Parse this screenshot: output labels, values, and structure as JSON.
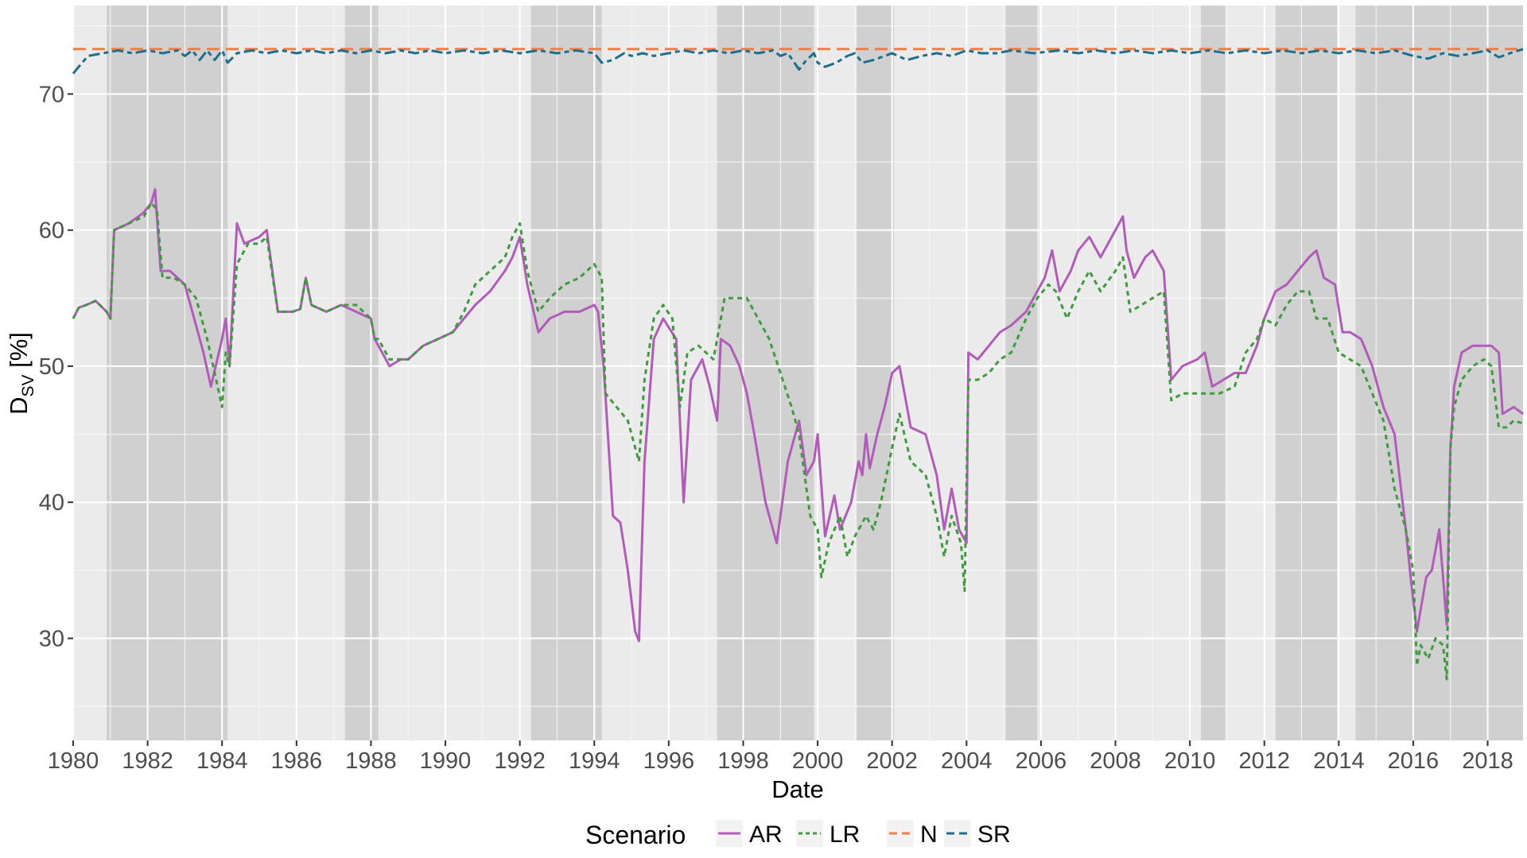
{
  "chart_data": {
    "type": "line",
    "xlabel": "Date",
    "ylabel_main": "D",
    "ylabel_sub": "SV",
    "ylabel_unit": " [%]",
    "xlim": [
      1980.0,
      2018.95
    ],
    "ylim": [
      22.5,
      76.5
    ],
    "x_ticks": [
      1980,
      1982,
      1984,
      1986,
      1988,
      1990,
      1992,
      1994,
      1996,
      1998,
      2000,
      2002,
      2004,
      2006,
      2008,
      2010,
      2012,
      2014,
      2016,
      2018
    ],
    "y_ticks": [
      30,
      40,
      50,
      60,
      70
    ],
    "grid": true,
    "legend": {
      "title": "Scenario",
      "position": "bottom"
    },
    "shaded_periods": [
      [
        1980.9,
        1984.15
      ],
      [
        1987.3,
        1988.2
      ],
      [
        1992.3,
        1994.2
      ],
      [
        1997.3,
        1999.9
      ],
      [
        2001.05,
        2002.05
      ],
      [
        2005.05,
        2005.9
      ],
      [
        2010.3,
        2010.95
      ],
      [
        2012.3,
        2013.95
      ],
      [
        2014.45,
        2017.05
      ],
      [
        2017.05,
        2018.95
      ]
    ],
    "series": [
      {
        "name": "AR",
        "color": "#B15CB8",
        "dash": "solid",
        "x": [
          1980.0,
          1980.15,
          1980.35,
          1980.6,
          1980.9,
          1981.0,
          1981.1,
          1981.5,
          1981.9,
          1982.1,
          1982.2,
          1982.35,
          1982.6,
          1983.0,
          1983.3,
          1983.5,
          1983.7,
          1984.0,
          1984.1,
          1984.2,
          1984.4,
          1984.6,
          1985.0,
          1985.2,
          1985.5,
          1985.9,
          1986.1,
          1986.25,
          1986.4,
          1986.8,
          1987.2,
          1987.6,
          1988.0,
          1988.1,
          1988.2,
          1988.5,
          1988.8,
          1989.0,
          1989.4,
          1989.8,
          1990.2,
          1990.5,
          1990.8,
          1991.2,
          1991.6,
          1991.8,
          1992.0,
          1992.2,
          1992.5,
          1992.8,
          1993.2,
          1993.6,
          1994.0,
          1994.1,
          1994.25,
          1994.5,
          1994.7,
          1994.9,
          1995.1,
          1995.2,
          1995.35,
          1995.6,
          1995.85,
          1996.2,
          1996.4,
          1996.6,
          1996.9,
          1997.1,
          1997.3,
          1997.4,
          1997.65,
          1997.9,
          1998.1,
          1998.3,
          1998.6,
          1998.9,
          1999.2,
          1999.5,
          1999.7,
          1999.9,
          2000.0,
          2000.2,
          2000.45,
          2000.6,
          2000.9,
          2001.1,
          2001.2,
          2001.3,
          2001.4,
          2001.6,
          2001.8,
          2002.0,
          2002.2,
          2002.5,
          2002.9,
          2003.2,
          2003.4,
          2003.6,
          2003.8,
          2004.0,
          2004.05,
          2004.3,
          2004.6,
          2004.9,
          2005.2,
          2005.6,
          2005.9,
          2006.1,
          2006.3,
          2006.5,
          2006.8,
          2007.0,
          2007.3,
          2007.6,
          2008.0,
          2008.2,
          2008.3,
          2008.5,
          2008.8,
          2009.0,
          2009.3,
          2009.5,
          2009.8,
          2010.2,
          2010.4,
          2010.6,
          2010.9,
          2011.2,
          2011.5,
          2011.8,
          2012.0,
          2012.3,
          2012.6,
          2012.9,
          2013.2,
          2013.4,
          2013.6,
          2013.9,
          2014.1,
          2014.3,
          2014.6,
          2014.9,
          2015.2,
          2015.5,
          2015.8,
          2015.95,
          2016.1,
          2016.35,
          2016.5,
          2016.7,
          2016.9,
          2017.0,
          2017.1,
          2017.3,
          2017.6,
          2017.9,
          2018.1,
          2018.3,
          2018.4,
          2018.7,
          2018.95
        ],
        "y": [
          53.5,
          54.3,
          54.5,
          54.8,
          54.0,
          53.5,
          60.0,
          60.5,
          61.3,
          62.0,
          63.0,
          57.0,
          57.0,
          56.0,
          53.0,
          51.0,
          48.5,
          52.0,
          53.5,
          50.0,
          60.5,
          59.0,
          59.5,
          60.0,
          54.0,
          54.0,
          54.2,
          56.5,
          54.5,
          54.0,
          54.5,
          54.0,
          53.5,
          52.0,
          51.5,
          50.0,
          50.5,
          50.5,
          51.5,
          52.0,
          52.5,
          53.5,
          54.5,
          55.5,
          57.0,
          58.0,
          59.5,
          56.0,
          52.5,
          53.5,
          54.0,
          54.0,
          54.5,
          54.0,
          50.0,
          39.0,
          38.5,
          35.0,
          30.5,
          29.8,
          43.0,
          52.0,
          53.5,
          52.0,
          40.0,
          49.0,
          50.5,
          48.5,
          46.0,
          52.0,
          51.5,
          50.0,
          48.0,
          45.0,
          40.0,
          37.0,
          43.0,
          46.0,
          42.0,
          43.0,
          45.0,
          37.5,
          40.5,
          38.0,
          40.0,
          43.0,
          42.0,
          45.0,
          42.5,
          45.0,
          47.0,
          49.5,
          50.0,
          45.5,
          45.0,
          42.0,
          38.0,
          41.0,
          38.0,
          37.0,
          51.0,
          50.5,
          51.5,
          52.5,
          53.0,
          54.0,
          55.5,
          56.5,
          58.5,
          55.5,
          57.0,
          58.5,
          59.5,
          58.0,
          60.0,
          61.0,
          58.5,
          56.5,
          58.0,
          58.5,
          57.0,
          49.0,
          50.0,
          50.5,
          51.0,
          48.5,
          49.0,
          49.5,
          49.5,
          51.5,
          53.5,
          55.5,
          56.0,
          57.0,
          58.0,
          58.5,
          56.5,
          56.0,
          52.5,
          52.5,
          52.0,
          50.0,
          47.0,
          45.0,
          38.0,
          34.0,
          30.5,
          34.5,
          35.0,
          38.0,
          31.0,
          44.0,
          48.5,
          51.0,
          51.5,
          51.5,
          51.5,
          51.0,
          46.5,
          47.0,
          46.5
        ],
        "legend_label": "AR"
      },
      {
        "name": "LR",
        "color": "#3E9B3E",
        "dash": "dashed",
        "x": [
          1980.0,
          1980.15,
          1980.35,
          1980.6,
          1980.9,
          1981.0,
          1981.1,
          1981.5,
          1981.9,
          1982.1,
          1982.25,
          1982.4,
          1982.7,
          1983.0,
          1983.3,
          1983.6,
          1983.8,
          1984.0,
          1984.1,
          1984.2,
          1984.4,
          1984.7,
          1985.0,
          1985.2,
          1985.5,
          1985.9,
          1986.1,
          1986.25,
          1986.4,
          1986.8,
          1987.2,
          1987.6,
          1988.0,
          1988.1,
          1988.2,
          1988.5,
          1988.8,
          1989.0,
          1989.4,
          1989.8,
          1990.2,
          1990.5,
          1990.8,
          1991.2,
          1991.6,
          1991.8,
          1992.0,
          1992.2,
          1992.5,
          1992.8,
          1993.2,
          1993.6,
          1994.0,
          1994.2,
          1994.3,
          1994.6,
          1994.9,
          1995.2,
          1995.35,
          1995.6,
          1995.85,
          1996.1,
          1996.3,
          1996.5,
          1996.8,
          1997.0,
          1997.2,
          1997.5,
          1997.8,
          1998.1,
          1998.4,
          1998.7,
          1999.0,
          1999.3,
          1999.5,
          1999.8,
          2000.0,
          2000.1,
          2000.3,
          2000.6,
          2000.8,
          2001.0,
          2001.3,
          2001.5,
          2001.7,
          2002.0,
          2002.2,
          2002.5,
          2002.9,
          2003.2,
          2003.4,
          2003.6,
          2003.85,
          2003.95,
          2004.05,
          2004.3,
          2004.6,
          2004.9,
          2005.2,
          2005.6,
          2005.9,
          2006.2,
          2006.4,
          2006.7,
          2007.0,
          2007.3,
          2007.6,
          2008.0,
          2008.2,
          2008.4,
          2008.7,
          2009.0,
          2009.3,
          2009.5,
          2009.8,
          2010.2,
          2010.5,
          2010.8,
          2011.2,
          2011.5,
          2011.8,
          2012.0,
          2012.3,
          2012.6,
          2012.9,
          2013.2,
          2013.4,
          2013.7,
          2014.0,
          2014.3,
          2014.6,
          2014.9,
          2015.2,
          2015.5,
          2015.8,
          2016.0,
          2016.1,
          2016.2,
          2016.4,
          2016.6,
          2016.8,
          2016.9,
          2017.0,
          2017.1,
          2017.3,
          2017.6,
          2017.9,
          2018.1,
          2018.3,
          2018.5,
          2018.7,
          2018.95
        ],
        "y": [
          53.5,
          54.3,
          54.5,
          54.8,
          54.0,
          53.5,
          60.0,
          60.5,
          61.0,
          62.0,
          61.5,
          56.5,
          56.5,
          56.0,
          55.0,
          52.0,
          49.5,
          47.0,
          51.0,
          50.0,
          57.5,
          59.0,
          59.0,
          59.5,
          54.0,
          54.0,
          54.2,
          56.5,
          54.5,
          54.0,
          54.5,
          54.5,
          53.5,
          52.0,
          52.0,
          50.5,
          50.5,
          50.5,
          51.5,
          52.0,
          52.5,
          54.0,
          56.0,
          57.0,
          58.0,
          59.5,
          60.5,
          57.0,
          54.0,
          55.0,
          56.0,
          56.5,
          57.5,
          56.5,
          48.0,
          47.0,
          46.0,
          43.0,
          49.0,
          53.5,
          54.5,
          53.5,
          47.0,
          51.0,
          51.5,
          51.0,
          50.5,
          55.0,
          55.0,
          55.0,
          53.5,
          52.0,
          49.5,
          47.0,
          45.0,
          39.0,
          38.0,
          34.5,
          37.0,
          39.0,
          36.0,
          37.5,
          39.0,
          38.0,
          40.0,
          44.0,
          46.5,
          43.0,
          42.0,
          39.0,
          36.0,
          39.0,
          37.0,
          33.5,
          49.0,
          49.0,
          49.5,
          50.5,
          51.0,
          53.5,
          55.0,
          56.0,
          55.5,
          53.5,
          55.5,
          57.0,
          55.5,
          57.0,
          58.0,
          54.0,
          54.5,
          55.0,
          55.5,
          47.5,
          48.0,
          48.0,
          48.0,
          48.0,
          48.5,
          51.0,
          52.0,
          53.5,
          53.0,
          54.5,
          55.5,
          55.5,
          53.5,
          53.5,
          51.0,
          50.5,
          50.0,
          48.0,
          46.0,
          41.0,
          38.0,
          35.0,
          28.0,
          29.5,
          28.5,
          30.0,
          29.5,
          27.0,
          44.0,
          47.0,
          49.0,
          50.0,
          50.5,
          50.0,
          45.5,
          45.5,
          46.0,
          45.8
        ],
        "legend_label": "LR"
      },
      {
        "name": "N",
        "color": "#EE7F4A",
        "dash": "longdash",
        "x": [
          1980.0,
          2018.95
        ],
        "y": [
          73.3,
          73.3
        ],
        "legend_label": "N"
      },
      {
        "name": "SR",
        "color": "#1E6E8C",
        "dash": "twodash",
        "x": [
          1980.0,
          1980.15,
          1980.4,
          1980.8,
          1981.2,
          1981.6,
          1982.0,
          1982.4,
          1982.8,
          1983.0,
          1983.2,
          1983.4,
          1983.6,
          1983.8,
          1984.0,
          1984.15,
          1984.4,
          1984.8,
          1985.2,
          1985.6,
          1986.0,
          1986.4,
          1986.8,
          1987.2,
          1987.6,
          1988.0,
          1988.4,
          1988.8,
          1989.2,
          1989.6,
          1990.0,
          1990.5,
          1991.0,
          1991.5,
          1992.0,
          1992.5,
          1993.0,
          1993.5,
          1994.0,
          1994.2,
          1994.5,
          1994.8,
          1995.0,
          1995.3,
          1995.6,
          1996.0,
          1996.4,
          1996.8,
          1997.2,
          1997.6,
          1998.0,
          1998.4,
          1998.8,
          1999.0,
          1999.2,
          1999.5,
          1999.7,
          1999.9,
          2000.0,
          2000.2,
          2000.5,
          2000.8,
          2001.0,
          2001.2,
          2001.5,
          2001.8,
          2002.0,
          2002.4,
          2002.8,
          2003.2,
          2003.6,
          2004.0,
          2004.4,
          2004.8,
          2005.2,
          2005.8,
          2006.5,
          2007.0,
          2007.5,
          2008.0,
          2008.5,
          2009.0,
          2009.5,
          2010.0,
          2010.5,
          2011.0,
          2011.5,
          2012.0,
          2012.5,
          2013.0,
          2013.5,
          2014.0,
          2014.5,
          2015.0,
          2015.5,
          2016.0,
          2016.4,
          2016.8,
          2017.2,
          2017.6,
          2018.0,
          2018.3,
          2018.6,
          2018.95
        ],
        "y": [
          71.5,
          72.0,
          72.8,
          73.0,
          73.2,
          73.0,
          73.2,
          73.0,
          73.2,
          72.8,
          73.2,
          72.5,
          73.2,
          72.5,
          73.2,
          72.3,
          73.0,
          73.2,
          73.0,
          73.2,
          73.0,
          73.2,
          73.0,
          73.2,
          73.0,
          73.2,
          73.0,
          73.2,
          73.0,
          73.2,
          73.0,
          73.2,
          73.0,
          73.2,
          73.0,
          73.2,
          73.0,
          73.2,
          73.0,
          72.3,
          72.5,
          73.0,
          72.8,
          73.0,
          72.8,
          73.0,
          73.2,
          73.0,
          73.2,
          73.0,
          73.2,
          73.0,
          73.2,
          72.8,
          73.0,
          71.8,
          72.5,
          73.0,
          72.3,
          72.0,
          72.3,
          72.8,
          73.0,
          72.3,
          72.5,
          72.8,
          73.0,
          72.5,
          72.8,
          73.0,
          72.8,
          73.2,
          73.0,
          73.0,
          73.2,
          73.0,
          73.2,
          73.0,
          73.2,
          73.0,
          73.2,
          73.0,
          73.2,
          73.0,
          73.2,
          73.0,
          73.2,
          73.0,
          73.2,
          73.0,
          73.2,
          73.0,
          73.2,
          73.0,
          73.2,
          72.8,
          72.6,
          73.0,
          72.8,
          73.0,
          73.2,
          72.7,
          73.0,
          73.3
        ],
        "legend_label": "SR"
      }
    ]
  }
}
